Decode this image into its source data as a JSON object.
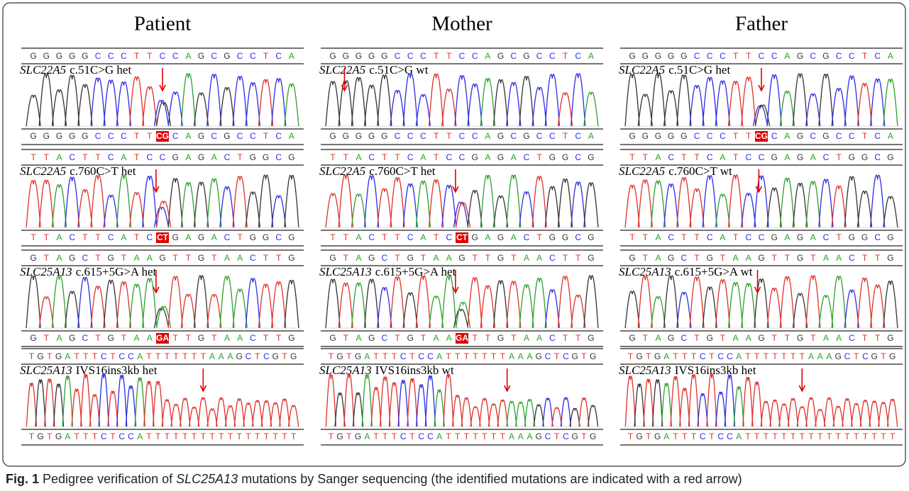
{
  "columns": [
    {
      "title": "Patient",
      "panels": [
        {
          "top": [
            "G",
            "G",
            "G",
            "G",
            "G",
            "C",
            "C",
            "C",
            "T",
            "T",
            "C",
            "C",
            "A",
            "G",
            "C",
            "G",
            "C",
            "C",
            "T",
            "C",
            "A"
          ],
          "gene": "SLC22A5",
          "variant": "c.51C>G het",
          "bottom": [
            "G",
            "G",
            "G",
            "G",
            "G",
            "C",
            "C",
            "C",
            "T",
            "T",
            "CG",
            "C",
            "A",
            "G",
            "C",
            "G",
            "C",
            "C",
            "T",
            "C",
            "A"
          ],
          "highlight_index": 10
        },
        {
          "top": [
            "T",
            "T",
            "A",
            "C",
            "T",
            "T",
            "C",
            "A",
            "T",
            "C",
            "C",
            "G",
            "A",
            "G",
            "A",
            "C",
            "T",
            "G",
            "G",
            "C",
            "G"
          ],
          "gene": "SLC22A5",
          "variant": "c.760C>T het",
          "bottom": [
            "T",
            "T",
            "A",
            "C",
            "T",
            "T",
            "C",
            "A",
            "T",
            "C",
            "CT",
            "G",
            "A",
            "G",
            "A",
            "C",
            "T",
            "G",
            "G",
            "C",
            "G"
          ],
          "highlight_index": 10
        },
        {
          "top": [
            "G",
            "T",
            "A",
            "G",
            "C",
            "T",
            "G",
            "T",
            "A",
            "A",
            "G",
            "T",
            "T",
            "G",
            "T",
            "A",
            "A",
            "C",
            "T",
            "T",
            "G"
          ],
          "gene": "SLC25A13",
          "variant": "c.615+5G>A het",
          "bottom": [
            "G",
            "T",
            "A",
            "G",
            "C",
            "T",
            "G",
            "T",
            "A",
            "A",
            "GA",
            "T",
            "T",
            "G",
            "T",
            "A",
            "A",
            "C",
            "T",
            "T",
            "G"
          ],
          "highlight_index": 10
        },
        {
          "top": [
            "T",
            "G",
            "T",
            "G",
            "A",
            "T",
            "T",
            "T",
            "C",
            "T",
            "C",
            "C",
            "A",
            "T",
            "T",
            "T",
            "T",
            "T",
            "T",
            "T",
            "A",
            "A",
            "A",
            "G",
            "C",
            "T",
            "C",
            "G",
            "T",
            "G"
          ],
          "gene": "SLC25A13",
          "variant": "IVS16ins3kb het",
          "bottom": [
            "T",
            "G",
            "T",
            "G",
            "A",
            "T",
            "T",
            "T",
            "C",
            "T",
            "C",
            "C",
            "A",
            "T",
            "T",
            "T",
            "T",
            "T",
            "T",
            "T",
            "T",
            "T",
            "T",
            "T",
            "T",
            "T",
            "T",
            "T",
            "T",
            "T"
          ]
        }
      ]
    },
    {
      "title": "Mother",
      "panels": [
        {
          "top": [
            "G",
            "G",
            "G",
            "G",
            "G",
            "C",
            "C",
            "C",
            "T",
            "T",
            "C",
            "C",
            "A",
            "G",
            "C",
            "G",
            "C",
            "C",
            "T",
            "C",
            "A"
          ],
          "gene": "SLC22A5",
          "variant": "c.51C>G wt",
          "bottom": [
            "G",
            "G",
            "G",
            "G",
            "G",
            "C",
            "C",
            "C",
            "T",
            "T",
            "C",
            "C",
            "A",
            "G",
            "C",
            "G",
            "C",
            "C",
            "T",
            "C",
            "A"
          ]
        },
        {
          "top": [
            "T",
            "T",
            "A",
            "C",
            "T",
            "T",
            "C",
            "A",
            "T",
            "C",
            "C",
            "G",
            "A",
            "G",
            "A",
            "C",
            "T",
            "G",
            "G",
            "C",
            "G"
          ],
          "gene": "SLC22A5",
          "variant": "c.760C>T het",
          "bottom": [
            "T",
            "T",
            "A",
            "C",
            "T",
            "T",
            "C",
            "A",
            "T",
            "C",
            "CT",
            "G",
            "A",
            "G",
            "A",
            "C",
            "T",
            "G",
            "G",
            "C",
            "G"
          ],
          "highlight_index": 10
        },
        {
          "top": [
            "G",
            "T",
            "A",
            "G",
            "C",
            "T",
            "G",
            "T",
            "A",
            "A",
            "G",
            "T",
            "T",
            "G",
            "T",
            "A",
            "A",
            "C",
            "T",
            "T",
            "G"
          ],
          "gene": "SLC25A13",
          "variant": "c.615+5G>A het",
          "bottom": [
            "G",
            "T",
            "A",
            "G",
            "C",
            "T",
            "G",
            "T",
            "A",
            "A",
            "GA",
            "T",
            "T",
            "G",
            "T",
            "A",
            "A",
            "C",
            "T",
            "T",
            "G"
          ],
          "highlight_index": 10
        },
        {
          "top": [
            "T",
            "G",
            "T",
            "G",
            "A",
            "T",
            "T",
            "T",
            "C",
            "T",
            "C",
            "C",
            "A",
            "T",
            "T",
            "T",
            "T",
            "T",
            "T",
            "T",
            "A",
            "A",
            "A",
            "G",
            "C",
            "T",
            "C",
            "G",
            "T",
            "G"
          ],
          "gene": "SLC25A13",
          "variant": "IVS16ins3kb wt",
          "bottom": [
            "T",
            "G",
            "T",
            "G",
            "A",
            "T",
            "T",
            "T",
            "C",
            "T",
            "C",
            "C",
            "A",
            "T",
            "T",
            "T",
            "T",
            "T",
            "T",
            "T",
            "A",
            "A",
            "A",
            "G",
            "C",
            "T",
            "C",
            "G",
            "T",
            "G"
          ]
        }
      ]
    },
    {
      "title": "Father",
      "panels": [
        {
          "top": [
            "G",
            "G",
            "G",
            "G",
            "G",
            "C",
            "C",
            "C",
            "T",
            "T",
            "C",
            "C",
            "A",
            "G",
            "C",
            "G",
            "C",
            "C",
            "T",
            "C",
            "A"
          ],
          "gene": "SLC22A5",
          "variant": "c.51C>G het",
          "bottom": [
            "G",
            "G",
            "G",
            "G",
            "G",
            "C",
            "C",
            "C",
            "T",
            "T",
            "CG",
            "C",
            "A",
            "G",
            "C",
            "G",
            "C",
            "C",
            "T",
            "C",
            "A"
          ],
          "highlight_index": 10
        },
        {
          "top": [
            "T",
            "T",
            "A",
            "C",
            "T",
            "T",
            "C",
            "A",
            "T",
            "C",
            "C",
            "G",
            "A",
            "G",
            "A",
            "C",
            "T",
            "G",
            "G",
            "C",
            "G"
          ],
          "gene": "SLC22A5",
          "variant": "c.760C>T wt",
          "bottom": [
            "T",
            "T",
            "A",
            "C",
            "T",
            "T",
            "C",
            "A",
            "T",
            "C",
            "C",
            "G",
            "A",
            "G",
            "A",
            "C",
            "T",
            "G",
            "G",
            "C",
            "G"
          ]
        },
        {
          "top": [
            "G",
            "T",
            "A",
            "G",
            "C",
            "T",
            "G",
            "T",
            "A",
            "A",
            "G",
            "T",
            "T",
            "G",
            "T",
            "A",
            "A",
            "C",
            "T",
            "T",
            "G"
          ],
          "gene": "SLC25A13",
          "variant": "c.615+5G>A wt",
          "bottom": [
            "G",
            "T",
            "A",
            "G",
            "C",
            "T",
            "G",
            "T",
            "A",
            "A",
            "G",
            "T",
            "T",
            "G",
            "T",
            "A",
            "A",
            "C",
            "T",
            "T",
            "G"
          ]
        },
        {
          "top": [
            "T",
            "G",
            "T",
            "G",
            "A",
            "T",
            "T",
            "T",
            "C",
            "T",
            "C",
            "C",
            "A",
            "T",
            "T",
            "T",
            "T",
            "T",
            "T",
            "T",
            "A",
            "A",
            "A",
            "G",
            "C",
            "T",
            "C",
            "G",
            "T",
            "G"
          ],
          "gene": "SLC25A13",
          "variant": "IVS16ins3kb het",
          "bottom": [
            "T",
            "G",
            "T",
            "G",
            "A",
            "T",
            "T",
            "T",
            "C",
            "T",
            "C",
            "C",
            "A",
            "T",
            "T",
            "T",
            "T",
            "T",
            "T",
            "T",
            "T",
            "T",
            "T",
            "T",
            "T",
            "T",
            "T",
            "T",
            "T",
            "T"
          ]
        }
      ]
    }
  ],
  "caption": {
    "label": "Fig. 1",
    "parts": [
      " Pedigree verification of ",
      "SLC25A13",
      " mutations by Sanger sequencing (the identified mutations are indicated with a red arrow)"
    ]
  }
}
